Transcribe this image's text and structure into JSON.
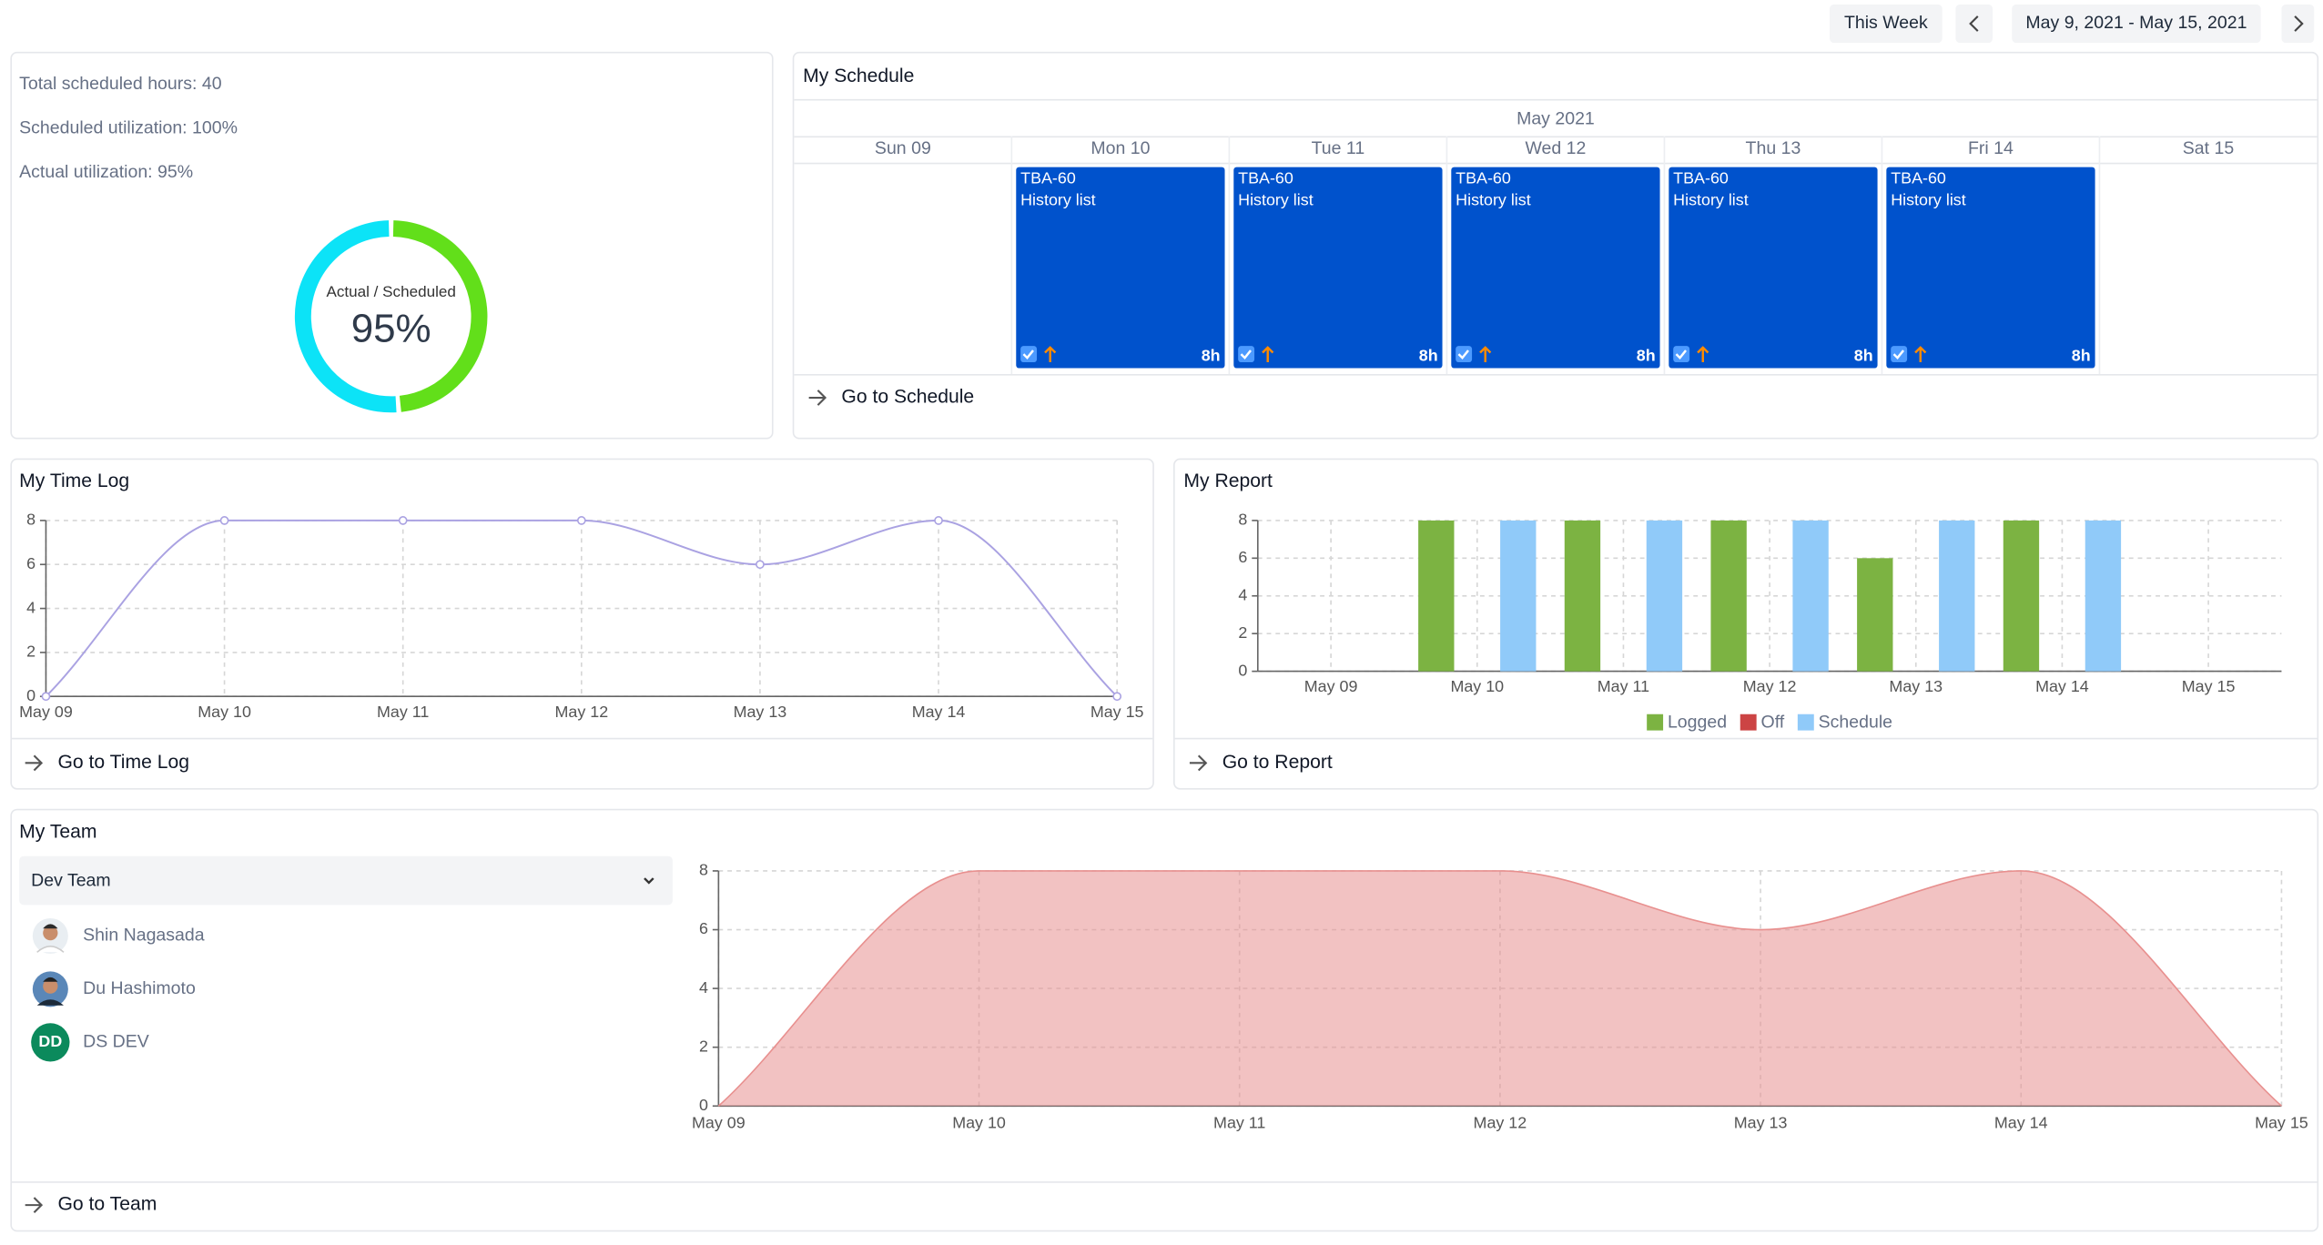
{
  "header": {
    "period_button": "This Week",
    "date_range": "May 9, 2021 - May 15, 2021"
  },
  "summary": {
    "stats": [
      "Total scheduled hours: 40",
      "Scheduled utilization: 100%",
      "Actual utilization: 95%"
    ]
  },
  "schedule": {
    "title": "My Schedule",
    "month": "May 2021",
    "days": [
      {
        "label": "Sun 09",
        "events": []
      },
      {
        "label": "Mon 10",
        "events": [
          {
            "code": "TBA-60",
            "name": "History list",
            "hours": "8h"
          }
        ]
      },
      {
        "label": "Tue 11",
        "events": [
          {
            "code": "TBA-60",
            "name": "History list",
            "hours": "8h"
          }
        ]
      },
      {
        "label": "Wed 12",
        "events": [
          {
            "code": "TBA-60",
            "name": "History list",
            "hours": "8h"
          }
        ]
      },
      {
        "label": "Thu 13",
        "events": [
          {
            "code": "TBA-60",
            "name": "History list",
            "hours": "8h"
          }
        ]
      },
      {
        "label": "Fri 14",
        "events": [
          {
            "code": "TBA-60",
            "name": "History list",
            "hours": "8h"
          }
        ]
      },
      {
        "label": "Sat 15",
        "events": []
      }
    ],
    "link": "Go to Schedule"
  },
  "time_log": {
    "link": "Go to Time Log"
  },
  "report": {
    "link": "Go to Report"
  },
  "team": {
    "title": "My Team",
    "selected_team": "Dev Team",
    "members": [
      {
        "name": "Shin Nagasada"
      },
      {
        "name": "Du Hashimoto"
      },
      {
        "initials": "DD",
        "name": "DS DEV"
      }
    ],
    "link": "Go to Team"
  },
  "chart_data": [
    {
      "type": "pie",
      "donut": true,
      "label": "Actual / Scheduled",
      "center_value": "95%",
      "values": [
        38,
        40
      ],
      "colors": [
        "#62df1a",
        "#0ce3f7"
      ]
    },
    {
      "type": "line",
      "title": "My Time Log",
      "categories": [
        "May 09",
        "May 10",
        "May 11",
        "May 12",
        "May 13",
        "May 14",
        "May 15"
      ],
      "values": [
        0,
        8,
        8,
        8,
        6,
        8,
        0
      ],
      "color": "#aaa2e2",
      "ylim": [
        0,
        8
      ],
      "yticks": [
        0,
        2,
        4,
        6,
        8
      ],
      "grid": true
    },
    {
      "type": "bar",
      "title": "My Report",
      "categories": [
        "May 09",
        "May 10",
        "May 11",
        "May 12",
        "May 13",
        "May 14",
        "May 15"
      ],
      "series": [
        {
          "name": "Logged",
          "color": "#7cb342",
          "values": [
            0,
            8,
            8,
            8,
            6,
            8,
            0
          ]
        },
        {
          "name": "Off",
          "color": "#cc4444",
          "values": [
            0,
            0,
            0,
            0,
            0,
            0,
            0
          ]
        },
        {
          "name": "Schedule",
          "color": "#90caf9",
          "values": [
            0,
            8,
            8,
            8,
            8,
            8,
            0
          ]
        }
      ],
      "ylim": [
        0,
        8
      ],
      "yticks": [
        0,
        2,
        4,
        6,
        8
      ],
      "grid": true,
      "legend": "bottom"
    },
    {
      "type": "area",
      "categories": [
        "May 09",
        "May 10",
        "May 11",
        "May 12",
        "May 13",
        "May 14",
        "May 15"
      ],
      "values": [
        0,
        8,
        8,
        8,
        6,
        8,
        0
      ],
      "color": "#e8908f",
      "ylim": [
        0,
        8
      ],
      "yticks": [
        0,
        2,
        4,
        6,
        8
      ],
      "grid": true
    }
  ]
}
